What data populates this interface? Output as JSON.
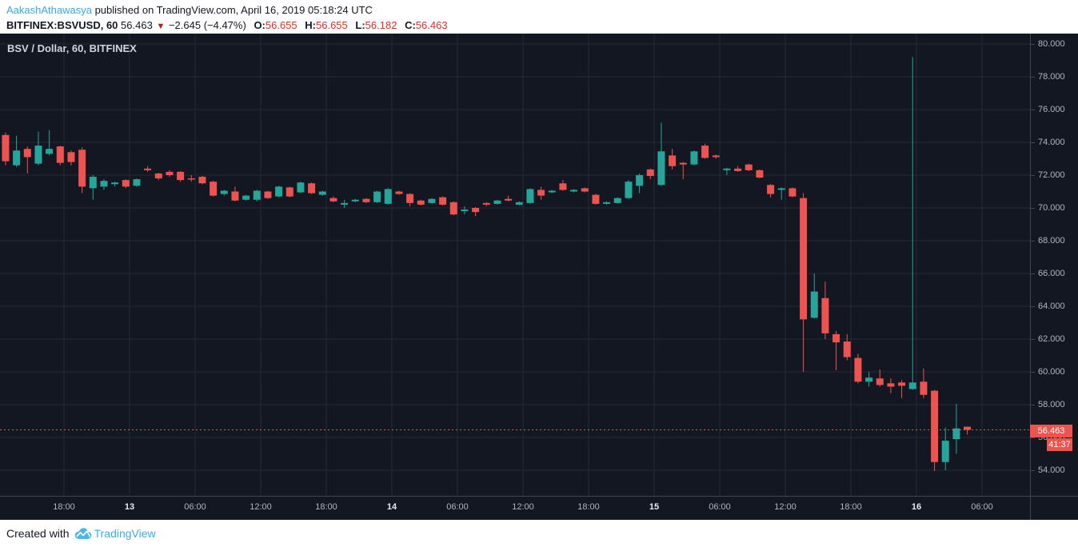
{
  "header": {
    "author": "AakashAthawasya",
    "published_text": " published on TradingView.com, April 16, 2019 05:18:24 UTC",
    "symbol_line": {
      "symbol": "BITFINEX:BSVUSD, 60",
      "last": "56.463",
      "direction_icon": "▼",
      "change": "−2.645 (−4.47%)",
      "o_label": "O:",
      "o_value": "56.655",
      "h_label": "H:",
      "h_value": "56.655",
      "l_label": "L:",
      "l_value": "56.182",
      "c_label": "C:",
      "c_value": "56.463"
    }
  },
  "chart": {
    "title": "BSV / Dollar, 60, BITFINEX",
    "price_badge": "56.463",
    "countdown_badge": "41:37"
  },
  "footer": {
    "created_with": "Created with",
    "brand": "TradingView"
  },
  "colors": {
    "background": "#131722",
    "grid": "#252a38",
    "axis_text": "#b2b5be",
    "up": "#26a69a",
    "down": "#ef5350",
    "badge": "#ef5350",
    "link_blue": "#3da8dc",
    "value_red": "#d0342c",
    "brand_blue": "#3eace0"
  },
  "chart_data": {
    "type": "candlestick",
    "title": "BSV / Dollar, 60, BITFINEX",
    "symbol": "BITFINEX:BSVUSD",
    "interval_minutes": 60,
    "last_price": 56.463,
    "countdown": "41:37",
    "y_axis": {
      "min": 54,
      "max": 80,
      "step": 2,
      "labels": [
        "80.000",
        "78.000",
        "76.000",
        "74.000",
        "72.000",
        "70.000",
        "68.000",
        "66.000",
        "64.000",
        "62.000",
        "60.000",
        "58.000",
        "56.000",
        "54.000"
      ]
    },
    "x_axis": {
      "labels": [
        {
          "text": "18:00",
          "day": false
        },
        {
          "text": "13",
          "day": true
        },
        {
          "text": "06:00",
          "day": false
        },
        {
          "text": "12:00",
          "day": false
        },
        {
          "text": "18:00",
          "day": false
        },
        {
          "text": "14",
          "day": true
        },
        {
          "text": "06:00",
          "day": false
        },
        {
          "text": "12:00",
          "day": false
        },
        {
          "text": "18:00",
          "day": false
        },
        {
          "text": "15",
          "day": true
        },
        {
          "text": "06:00",
          "day": false
        },
        {
          "text": "12:00",
          "day": false
        },
        {
          "text": "18:00",
          "day": false
        },
        {
          "text": "16",
          "day": true
        },
        {
          "text": "06:00",
          "day": false
        }
      ]
    },
    "candles_ohlc": [
      [
        74.3,
        74.5,
        72.5,
        73.0
      ],
      [
        74.45,
        74.6,
        72.6,
        72.85
      ],
      [
        72.6,
        74.4,
        72.5,
        73.5
      ],
      [
        73.6,
        73.75,
        72.1,
        73.1
      ],
      [
        72.7,
        74.65,
        72.6,
        73.8
      ],
      [
        73.3,
        74.75,
        73.2,
        73.6
      ],
      [
        73.75,
        73.8,
        72.6,
        72.75
      ],
      [
        73.4,
        73.5,
        72.6,
        72.8
      ],
      [
        73.55,
        73.7,
        70.9,
        71.3
      ],
      [
        71.2,
        72.0,
        70.5,
        71.9
      ],
      [
        71.3,
        71.75,
        71.1,
        71.65
      ],
      [
        71.45,
        71.6,
        71.3,
        71.55
      ],
      [
        71.7,
        71.75,
        71.2,
        71.3
      ],
      [
        71.35,
        71.8,
        71.3,
        71.75
      ],
      [
        72.4,
        72.55,
        72.2,
        72.3
      ],
      [
        72.1,
        72.15,
        71.7,
        71.8
      ],
      [
        72.2,
        72.3,
        71.9,
        72.0
      ],
      [
        72.2,
        72.25,
        71.6,
        71.7
      ],
      [
        71.8,
        72.0,
        71.6,
        71.75
      ],
      [
        71.9,
        71.95,
        71.45,
        71.5
      ],
      [
        71.6,
        71.65,
        70.7,
        70.75
      ],
      [
        70.85,
        71.1,
        70.75,
        71.05
      ],
      [
        71.0,
        71.3,
        70.4,
        70.45
      ],
      [
        70.5,
        70.8,
        70.45,
        70.75
      ],
      [
        70.5,
        71.1,
        70.4,
        71.05
      ],
      [
        71.0,
        71.05,
        70.55,
        70.6
      ],
      [
        70.7,
        71.35,
        70.65,
        71.3
      ],
      [
        71.25,
        71.3,
        70.65,
        70.7
      ],
      [
        70.95,
        71.6,
        70.9,
        71.55
      ],
      [
        71.5,
        71.55,
        70.85,
        70.9
      ],
      [
        70.8,
        71.05,
        70.75,
        71.0
      ],
      [
        70.6,
        70.7,
        70.35,
        70.4
      ],
      [
        70.2,
        70.5,
        70.0,
        70.3
      ],
      [
        70.4,
        70.55,
        70.35,
        70.5
      ],
      [
        70.55,
        70.6,
        70.3,
        70.35
      ],
      [
        70.35,
        71.05,
        70.3,
        71.0
      ],
      [
        70.25,
        71.2,
        70.2,
        71.15
      ],
      [
        71.0,
        71.05,
        70.8,
        70.85
      ],
      [
        70.85,
        70.9,
        70.1,
        70.3
      ],
      [
        70.45,
        70.5,
        70.15,
        70.2
      ],
      [
        70.3,
        70.6,
        70.25,
        70.55
      ],
      [
        70.65,
        70.7,
        70.15,
        70.2
      ],
      [
        70.35,
        70.4,
        69.55,
        69.6
      ],
      [
        69.8,
        70.1,
        69.6,
        69.9
      ],
      [
        70.0,
        70.05,
        69.5,
        69.75
      ],
      [
        70.3,
        70.35,
        70.1,
        70.2
      ],
      [
        70.25,
        70.5,
        70.2,
        70.45
      ],
      [
        70.55,
        70.75,
        70.4,
        70.45
      ],
      [
        70.2,
        70.4,
        70.15,
        70.35
      ],
      [
        70.3,
        71.2,
        70.25,
        71.15
      ],
      [
        71.1,
        71.3,
        70.5,
        70.75
      ],
      [
        70.95,
        71.1,
        70.9,
        71.05
      ],
      [
        71.5,
        71.7,
        71.05,
        71.1
      ],
      [
        71.0,
        71.15,
        70.95,
        71.1
      ],
      [
        71.2,
        71.25,
        70.95,
        71.0
      ],
      [
        70.8,
        70.85,
        70.2,
        70.25
      ],
      [
        70.25,
        70.4,
        70.2,
        70.35
      ],
      [
        70.3,
        70.65,
        70.25,
        70.6
      ],
      [
        70.6,
        71.7,
        70.55,
        71.6
      ],
      [
        71.35,
        72.1,
        70.9,
        72.0
      ],
      [
        72.35,
        72.4,
        71.75,
        71.95
      ],
      [
        71.4,
        75.2,
        71.35,
        73.45
      ],
      [
        73.2,
        73.6,
        72.35,
        72.55
      ],
      [
        72.75,
        72.8,
        71.75,
        72.65
      ],
      [
        72.65,
        73.5,
        72.6,
        73.45
      ],
      [
        73.8,
        73.9,
        73.0,
        73.05
      ],
      [
        73.2,
        73.25,
        73.0,
        73.1
      ],
      [
        72.3,
        72.45,
        72.0,
        72.4
      ],
      [
        72.4,
        72.55,
        72.2,
        72.25
      ],
      [
        72.65,
        72.7,
        72.25,
        72.3
      ],
      [
        72.3,
        72.35,
        71.8,
        71.85
      ],
      [
        71.4,
        71.45,
        70.65,
        70.85
      ],
      [
        71.1,
        71.25,
        70.5,
        71.2
      ],
      [
        71.2,
        71.25,
        70.65,
        70.7
      ],
      [
        70.6,
        70.9,
        60.0,
        63.2
      ],
      [
        63.3,
        66.0,
        63.25,
        64.9
      ],
      [
        64.5,
        65.5,
        62.0,
        62.35
      ],
      [
        62.3,
        62.5,
        60.1,
        61.8
      ],
      [
        61.85,
        62.3,
        60.7,
        60.9
      ],
      [
        60.85,
        61.1,
        59.3,
        59.4
      ],
      [
        59.4,
        60.0,
        59.1,
        59.65
      ],
      [
        59.6,
        60.15,
        59.1,
        59.2
      ],
      [
        59.3,
        59.6,
        58.7,
        59.1
      ],
      [
        59.35,
        59.5,
        58.4,
        59.15
      ],
      [
        58.95,
        79.2,
        58.9,
        59.35
      ],
      [
        59.4,
        60.2,
        58.4,
        58.6
      ],
      [
        58.85,
        58.9,
        53.95,
        54.5
      ],
      [
        54.5,
        56.6,
        54.0,
        55.8
      ],
      [
        55.9,
        58.05,
        55.0,
        56.55
      ],
      [
        56.655,
        56.655,
        56.182,
        56.463
      ]
    ]
  }
}
